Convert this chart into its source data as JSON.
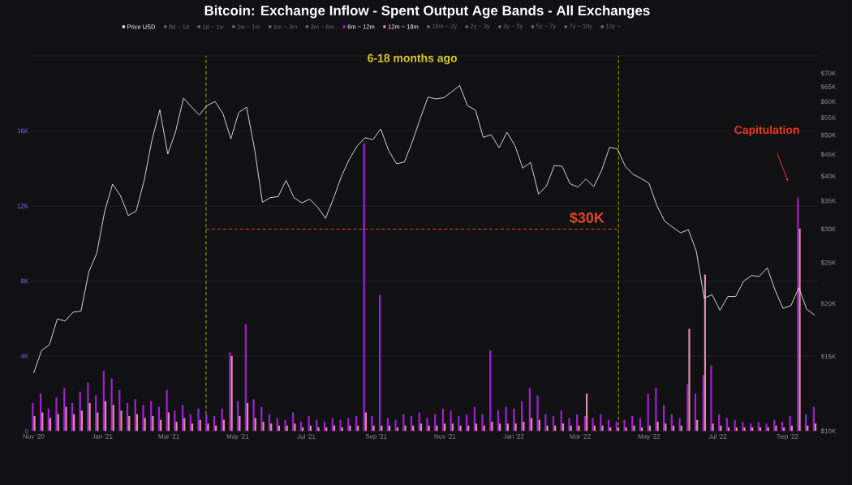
{
  "chart_data": {
    "type": "bar",
    "title": "Bitcoin: Exchange Inflow - Spent Output Age Bands - All Exchanges",
    "x": [
      "2020-11-01",
      "2020-11-08",
      "2020-11-15",
      "2020-11-22",
      "2020-11-29",
      "2020-12-06",
      "2020-12-13",
      "2020-12-20",
      "2020-12-27",
      "2021-01-03",
      "2021-01-10",
      "2021-01-17",
      "2021-01-24",
      "2021-01-31",
      "2021-02-07",
      "2021-02-14",
      "2021-02-21",
      "2021-02-28",
      "2021-03-07",
      "2021-03-14",
      "2021-03-21",
      "2021-03-28",
      "2021-04-04",
      "2021-04-11",
      "2021-04-18",
      "2021-04-25",
      "2021-05-02",
      "2021-05-09",
      "2021-05-16",
      "2021-05-23",
      "2021-05-30",
      "2021-06-06",
      "2021-06-13",
      "2021-06-20",
      "2021-06-27",
      "2021-07-04",
      "2021-07-11",
      "2021-07-18",
      "2021-07-25",
      "2021-08-01",
      "2021-08-08",
      "2021-08-15",
      "2021-08-22",
      "2021-08-29",
      "2021-09-05",
      "2021-09-12",
      "2021-09-19",
      "2021-09-26",
      "2021-10-03",
      "2021-10-10",
      "2021-10-17",
      "2021-10-24",
      "2021-10-31",
      "2021-11-07",
      "2021-11-14",
      "2021-11-21",
      "2021-11-28",
      "2021-12-05",
      "2021-12-12",
      "2021-12-19",
      "2021-12-26",
      "2022-01-02",
      "2022-01-09",
      "2022-01-16",
      "2022-01-23",
      "2022-01-30",
      "2022-02-06",
      "2022-02-13",
      "2022-02-20",
      "2022-02-27",
      "2022-03-06",
      "2022-03-13",
      "2022-03-20",
      "2022-03-27",
      "2022-04-03",
      "2022-04-10",
      "2022-04-17",
      "2022-04-24",
      "2022-05-01",
      "2022-05-08",
      "2022-05-15",
      "2022-05-22",
      "2022-05-29",
      "2022-06-05",
      "2022-06-12",
      "2022-06-19",
      "2022-06-26",
      "2022-07-03",
      "2022-07-10",
      "2022-07-17",
      "2022-07-24",
      "2022-07-31",
      "2022-08-07",
      "2022-08-14",
      "2022-08-21",
      "2022-08-28",
      "2022-09-04",
      "2022-09-11",
      "2022-09-18",
      "2022-09-25"
    ],
    "series": [
      {
        "name": "Price USD",
        "type": "line",
        "axis": "y2",
        "color": "#e8e8e8",
        "values": [
          13700,
          15500,
          16000,
          18400,
          18200,
          19100,
          19200,
          23800,
          26300,
          33000,
          38300,
          36000,
          32300,
          33100,
          39000,
          48700,
          57400,
          45100,
          51000,
          61200,
          58300,
          55800,
          58800,
          60000,
          56200,
          49000,
          56600,
          58200,
          46400,
          34700,
          35600,
          35800,
          39100,
          35600,
          34600,
          35300,
          33800,
          31800,
          35400,
          39900,
          43800,
          47100,
          49300,
          48800,
          51700,
          46000,
          42800,
          43200,
          48200,
          54700,
          61500,
          60900,
          61300,
          63300,
          65500,
          58700,
          57300,
          49400,
          50100,
          46700,
          50800,
          47300,
          41800,
          43100,
          36300,
          37900,
          42400,
          42200,
          38400,
          37700,
          39400,
          37800,
          41300,
          46800,
          46400,
          42200,
          40400,
          39500,
          38500,
          34100,
          31300,
          30300,
          29400,
          29900,
          26600,
          20600,
          21000,
          19300,
          20800,
          20800,
          22600,
          23300,
          23200,
          24300,
          21500,
          19500,
          19800,
          21800,
          19400,
          18800
        ]
      },
      {
        "name": "0d ~ 1d",
        "color": "#6a6a70",
        "values": [
          null,
          null,
          null,
          null,
          null,
          null,
          null,
          null,
          null,
          null,
          null,
          null,
          null,
          null,
          null,
          null,
          null,
          null,
          null,
          null,
          null,
          null,
          null,
          null,
          null,
          null,
          null,
          null,
          null,
          null,
          null,
          null,
          null,
          null,
          null,
          null,
          null,
          null,
          null,
          null,
          null,
          null,
          null,
          null,
          null,
          null,
          null,
          null,
          null,
          null,
          null,
          null,
          null,
          null,
          null,
          null,
          null,
          null,
          null,
          null,
          null,
          null,
          null,
          null,
          null,
          null,
          null,
          null,
          null,
          null,
          null,
          null,
          null,
          null,
          null,
          null,
          null,
          null,
          null,
          null,
          null,
          null,
          null,
          null,
          null,
          null,
          null,
          null,
          null,
          null,
          null,
          null,
          null,
          null,
          null,
          null,
          null,
          null,
          null,
          null
        ]
      },
      {
        "name": "1d ~ 1w",
        "color": "#6a6a70",
        "values": [
          null,
          null,
          null,
          null,
          null,
          null,
          null,
          null,
          null,
          null,
          null,
          null,
          null,
          null,
          null,
          null,
          null,
          null,
          null,
          null,
          null,
          null,
          null,
          null,
          null,
          null,
          null,
          null,
          null,
          null,
          null,
          null,
          null,
          null,
          null,
          null,
          null,
          null,
          null,
          null,
          null,
          null,
          null,
          null,
          null,
          null,
          null,
          null,
          null,
          null,
          null,
          null,
          null,
          null,
          null,
          null,
          null,
          null,
          null,
          null,
          null,
          null,
          null,
          null,
          null,
          null,
          null,
          null,
          null,
          null,
          null,
          null,
          null,
          null,
          null,
          null,
          null,
          null,
          null,
          null,
          null,
          null,
          null,
          null,
          null,
          null,
          null,
          null,
          null,
          null,
          null,
          null,
          null,
          null,
          null,
          null,
          null,
          null,
          null,
          null
        ]
      },
      {
        "name": "1w ~ 1m",
        "color": "#6a6a70",
        "values": [
          null,
          null,
          null,
          null,
          null,
          null,
          null,
          null,
          null,
          null,
          null,
          null,
          null,
          null,
          null,
          null,
          null,
          null,
          null,
          null,
          null,
          null,
          null,
          null,
          null,
          null,
          null,
          null,
          null,
          null,
          null,
          null,
          null,
          null,
          null,
          null,
          null,
          null,
          null,
          null,
          null,
          null,
          null,
          null,
          null,
          null,
          null,
          null,
          null,
          null,
          null,
          null,
          null,
          null,
          null,
          null,
          null,
          null,
          null,
          null,
          null,
          null,
          null,
          null,
          null,
          null,
          null,
          null,
          null,
          null,
          null,
          null,
          null,
          null,
          null,
          null,
          null,
          null,
          null,
          null,
          null,
          null,
          null,
          null,
          null,
          null,
          null,
          null,
          null,
          null,
          null,
          null,
          null,
          null,
          null,
          null,
          null,
          null,
          null,
          null
        ]
      },
      {
        "name": "1m ~ 3m",
        "color": "#6a6a70",
        "values": [
          null,
          null,
          null,
          null,
          null,
          null,
          null,
          null,
          null,
          null,
          null,
          null,
          null,
          null,
          null,
          null,
          null,
          null,
          null,
          null,
          null,
          null,
          null,
          null,
          null,
          null,
          null,
          null,
          null,
          null,
          null,
          null,
          null,
          null,
          null,
          null,
          null,
          null,
          null,
          null,
          null,
          null,
          null,
          null,
          null,
          null,
          null,
          null,
          null,
          null,
          null,
          null,
          null,
          null,
          null,
          null,
          null,
          null,
          null,
          null,
          null,
          null,
          null,
          null,
          null,
          null,
          null,
          null,
          null,
          null,
          null,
          null,
          null,
          null,
          null,
          null,
          null,
          null,
          null,
          null,
          null,
          null,
          null,
          null,
          null,
          null,
          null,
          null,
          null,
          null,
          null,
          null,
          null,
          null,
          null,
          null,
          null,
          null,
          null,
          null
        ]
      },
      {
        "name": "3m ~ 6m",
        "color": "#6a6a70",
        "values": [
          null,
          null,
          null,
          null,
          null,
          null,
          null,
          null,
          null,
          null,
          null,
          null,
          null,
          null,
          null,
          null,
          null,
          null,
          null,
          null,
          null,
          null,
          null,
          null,
          null,
          null,
          null,
          null,
          null,
          null,
          null,
          null,
          null,
          null,
          null,
          null,
          null,
          null,
          null,
          null,
          null,
          null,
          null,
          null,
          null,
          null,
          null,
          null,
          null,
          null,
          null,
          null,
          null,
          null,
          null,
          null,
          null,
          null,
          null,
          null,
          null,
          null,
          null,
          null,
          null,
          null,
          null,
          null,
          null,
          null,
          null,
          null,
          null,
          null,
          null,
          null,
          null,
          null,
          null,
          null,
          null,
          null,
          null,
          null,
          null,
          null,
          null,
          null,
          null,
          null,
          null,
          null,
          null,
          null,
          null,
          null,
          null,
          null,
          null,
          null
        ]
      },
      {
        "name": "6m ~ 12m",
        "color": "#a21fd6",
        "values": [
          1500,
          2000,
          1200,
          1800,
          2300,
          1500,
          2100,
          2600,
          1900,
          3200,
          2800,
          2200,
          1500,
          1700,
          1400,
          1600,
          1300,
          2200,
          1100,
          1400,
          900,
          1200,
          900,
          800,
          1200,
          4200,
          1600,
          5700,
          1700,
          1300,
          900,
          700,
          600,
          1000,
          500,
          800,
          600,
          500,
          700,
          600,
          700,
          800,
          15350,
          800,
          7260,
          700,
          600,
          900,
          800,
          1000,
          700,
          900,
          1200,
          1100,
          800,
          900,
          1300,
          900,
          4300,
          1100,
          1300,
          1200,
          1600,
          2300,
          1900,
          900,
          800,
          1100,
          700,
          900,
          800,
          700,
          900,
          600,
          500,
          600,
          800,
          700,
          2000,
          2300,
          1400,
          900,
          700,
          2500,
          2000,
          3000,
          3500,
          900,
          700,
          600,
          500,
          400,
          500,
          400,
          600,
          500,
          800,
          12450,
          900,
          1300
        ]
      },
      {
        "name": "12m ~ 18m",
        "color": "#e58aa8",
        "values": [
          800,
          1000,
          700,
          900,
          1300,
          900,
          1100,
          1500,
          1000,
          1600,
          1400,
          1100,
          800,
          900,
          700,
          800,
          600,
          1000,
          500,
          700,
          400,
          600,
          400,
          300,
          600,
          4000,
          800,
          1500,
          700,
          500,
          400,
          300,
          300,
          400,
          200,
          300,
          200,
          200,
          300,
          200,
          300,
          300,
          1000,
          300,
          300,
          300,
          200,
          300,
          300,
          400,
          300,
          300,
          400,
          400,
          300,
          300,
          400,
          300,
          500,
          400,
          400,
          400,
          500,
          700,
          600,
          300,
          300,
          400,
          300,
          300,
          2000,
          300,
          300,
          200,
          200,
          200,
          300,
          200,
          300,
          500,
          400,
          300,
          300,
          5450,
          600,
          8340,
          400,
          300,
          200,
          200,
          200,
          200,
          200,
          200,
          300,
          200,
          300,
          10800,
          300,
          400
        ]
      },
      {
        "name": "18m ~ 2y",
        "color": "#6a6a70",
        "values": [
          null,
          null,
          null,
          null,
          null,
          null,
          null,
          null,
          null,
          null,
          null,
          null,
          null,
          null,
          null,
          null,
          null,
          null,
          null,
          null,
          null,
          null,
          null,
          null,
          null,
          null,
          null,
          null,
          null,
          null,
          null,
          null,
          null,
          null,
          null,
          null,
          null,
          null,
          null,
          null,
          null,
          null,
          null,
          null,
          null,
          null,
          null,
          null,
          null,
          null,
          null,
          null,
          null,
          null,
          null,
          null,
          null,
          null,
          null,
          null,
          null,
          null,
          null,
          null,
          null,
          null,
          null,
          null,
          null,
          null,
          null,
          null,
          null,
          null,
          null,
          null,
          null,
          null,
          null,
          null,
          null,
          null,
          null,
          null,
          null,
          null,
          null,
          null,
          null,
          null,
          null,
          null,
          null,
          null,
          null,
          null,
          null,
          null,
          null,
          null
        ]
      },
      {
        "name": "2y ~ 3y",
        "color": "#6a6a70",
        "values": [
          null,
          null,
          null,
          null,
          null,
          null,
          null,
          null,
          null,
          null,
          null,
          null,
          null,
          null,
          null,
          null,
          null,
          null,
          null,
          null,
          null,
          null,
          null,
          null,
          null,
          null,
          null,
          null,
          null,
          null,
          null,
          null,
          null,
          null,
          null,
          null,
          null,
          null,
          null,
          null,
          null,
          null,
          null,
          null,
          null,
          null,
          null,
          null,
          null,
          null,
          null,
          null,
          null,
          null,
          null,
          null,
          null,
          null,
          null,
          null,
          null,
          null,
          null,
          null,
          null,
          null,
          null,
          null,
          null,
          null,
          null,
          null,
          null,
          null,
          null,
          null,
          null,
          null,
          null,
          null,
          null,
          null,
          null,
          null,
          null,
          null,
          null,
          null,
          null,
          null,
          null,
          null,
          null,
          null,
          null,
          null,
          null,
          null,
          null,
          null
        ]
      },
      {
        "name": "3y ~ 5y",
        "color": "#6a6a70",
        "values": [
          null,
          null,
          null,
          null,
          null,
          null,
          null,
          null,
          null,
          null,
          null,
          null,
          null,
          null,
          null,
          null,
          null,
          null,
          null,
          null,
          null,
          null,
          null,
          null,
          null,
          null,
          null,
          null,
          null,
          null,
          null,
          null,
          null,
          null,
          null,
          null,
          null,
          null,
          null,
          null,
          null,
          null,
          null,
          null,
          null,
          null,
          null,
          null,
          null,
          null,
          null,
          null,
          null,
          null,
          null,
          null,
          null,
          null,
          null,
          null,
          null,
          null,
          null,
          null,
          null,
          null,
          null,
          null,
          null,
          null,
          null,
          null,
          null,
          null,
          null,
          null,
          null,
          null,
          null,
          null,
          null,
          null,
          null,
          null,
          null,
          null,
          null,
          null,
          null,
          null,
          null,
          null,
          null,
          null,
          null,
          null,
          null,
          null,
          null,
          null
        ]
      },
      {
        "name": "5y ~ 7y",
        "color": "#6a6a70",
        "values": [
          null,
          null,
          null,
          null,
          null,
          null,
          null,
          null,
          null,
          null,
          null,
          null,
          null,
          null,
          null,
          null,
          null,
          null,
          null,
          null,
          null,
          null,
          null,
          null,
          null,
          null,
          null,
          null,
          null,
          null,
          null,
          null,
          null,
          null,
          null,
          null,
          null,
          null,
          null,
          null,
          null,
          null,
          null,
          null,
          null,
          null,
          null,
          null,
          null,
          null,
          null,
          null,
          null,
          null,
          null,
          null,
          null,
          null,
          null,
          null,
          null,
          null,
          null,
          null,
          null,
          null,
          null,
          null,
          null,
          null,
          null,
          null,
          null,
          null,
          null,
          null,
          null,
          null,
          null,
          null,
          null,
          null,
          null,
          null,
          null,
          null,
          null,
          null,
          null,
          null,
          null,
          null,
          null,
          null,
          null,
          null,
          null,
          null,
          null,
          null
        ]
      },
      {
        "name": "7y ~ 10y",
        "color": "#6a6a70",
        "values": [
          null,
          null,
          null,
          null,
          null,
          null,
          null,
          null,
          null,
          null,
          null,
          null,
          null,
          null,
          null,
          null,
          null,
          null,
          null,
          null,
          null,
          null,
          null,
          null,
          null,
          null,
          null,
          null,
          null,
          null,
          null,
          null,
          null,
          null,
          null,
          null,
          null,
          null,
          null,
          null,
          null,
          null,
          null,
          null,
          null,
          null,
          null,
          null,
          null,
          null,
          null,
          null,
          null,
          null,
          null,
          null,
          null,
          null,
          null,
          null,
          null,
          null,
          null,
          null,
          null,
          null,
          null,
          null,
          null,
          null,
          null,
          null,
          null,
          null,
          null,
          null,
          null,
          null,
          null,
          null,
          null,
          null,
          null,
          null,
          null,
          null,
          null,
          null,
          null,
          null,
          null,
          null,
          null,
          null,
          null,
          null,
          null,
          null,
          null,
          null
        ]
      },
      {
        "name": "10y ~",
        "color": "#6a6a70",
        "values": [
          null,
          null,
          null,
          null,
          null,
          null,
          null,
          null,
          null,
          null,
          null,
          null,
          null,
          null,
          null,
          null,
          null,
          null,
          null,
          null,
          null,
          null,
          null,
          null,
          null,
          null,
          null,
          null,
          null,
          null,
          null,
          null,
          null,
          null,
          null,
          null,
          null,
          null,
          null,
          null,
          null,
          null,
          null,
          null,
          null,
          null,
          null,
          null,
          null,
          null,
          null,
          null,
          null,
          null,
          null,
          null,
          null,
          null,
          null,
          null,
          null,
          null,
          null,
          null,
          null,
          null,
          null,
          null,
          null,
          null,
          null,
          null,
          null,
          null,
          null,
          null,
          null,
          null,
          null,
          null,
          null,
          null,
          null,
          null,
          null,
          null,
          null,
          null,
          null,
          null,
          null,
          null,
          null,
          null,
          null,
          null,
          null,
          null,
          null,
          null
        ]
      }
    ],
    "xlim": [
      "2020-10-30",
      "2022-09-28"
    ],
    "xticks": [
      {
        "value": "2020-11-01",
        "label": "Nov '20"
      },
      {
        "value": "2021-01-01",
        "label": "Jan '21"
      },
      {
        "value": "2021-03-01",
        "label": "Mar '21"
      },
      {
        "value": "2021-05-01",
        "label": "May '21"
      },
      {
        "value": "2021-07-01",
        "label": "Jul '21"
      },
      {
        "value": "2021-09-01",
        "label": "Sep '21"
      },
      {
        "value": "2021-11-01",
        "label": "Nov '21"
      },
      {
        "value": "2022-01-01",
        "label": "Jan '22"
      },
      {
        "value": "2022-03-01",
        "label": "Mar '22"
      },
      {
        "value": "2022-05-01",
        "label": "May '22"
      },
      {
        "value": "2022-07-01",
        "label": "Jul '22"
      },
      {
        "value": "2022-09-01",
        "label": "Sep '22"
      }
    ],
    "ylim": [
      0,
      20000
    ],
    "yticks": [
      0,
      {
        "value": 4000,
        "label": "4K"
      },
      {
        "value": 8000,
        "label": "8K"
      },
      {
        "value": 12000,
        "label": "12K"
      },
      {
        "value": 16000,
        "label": "16K"
      },
      {
        "value": 20000,
        "label": null
      }
    ],
    "y2lim": [
      10000,
      77000
    ],
    "y2ticks": [
      {
        "value": 10000,
        "label": "$10K"
      },
      {
        "value": 15000,
        "label": "$15K"
      },
      {
        "value": 20000,
        "label": "$20K"
      },
      {
        "value": 25000,
        "label": "$25K"
      },
      {
        "value": 30000,
        "label": "$30K"
      },
      {
        "value": 35000,
        "label": "$35K"
      },
      {
        "value": 40000,
        "label": "$40K"
      },
      {
        "value": 45000,
        "label": "$45K"
      },
      {
        "value": 50000,
        "label": "$50K"
      },
      {
        "value": 55000,
        "label": "$55K"
      },
      {
        "value": 60000,
        "label": "$60K"
      },
      {
        "value": 65000,
        "label": "$65K"
      },
      {
        "value": 70000,
        "label": "$70K"
      }
    ],
    "log": "y2",
    "grid": "y",
    "legend": "top",
    "ref_lines": [
      {
        "axis": "x",
        "value": "2021-04-03",
        "color": "#d9c827",
        "line_style": "dashed"
      },
      {
        "axis": "x",
        "value": "2022-04-04",
        "color": "#d9c827",
        "line_style": "dashed"
      },
      {
        "axis": "y2",
        "value": 30000,
        "label": "$30K",
        "color": "#e0442c",
        "line_style": "dashed"
      }
    ],
    "annotations": [
      "6-18 months ago",
      "Capitulation"
    ]
  }
}
